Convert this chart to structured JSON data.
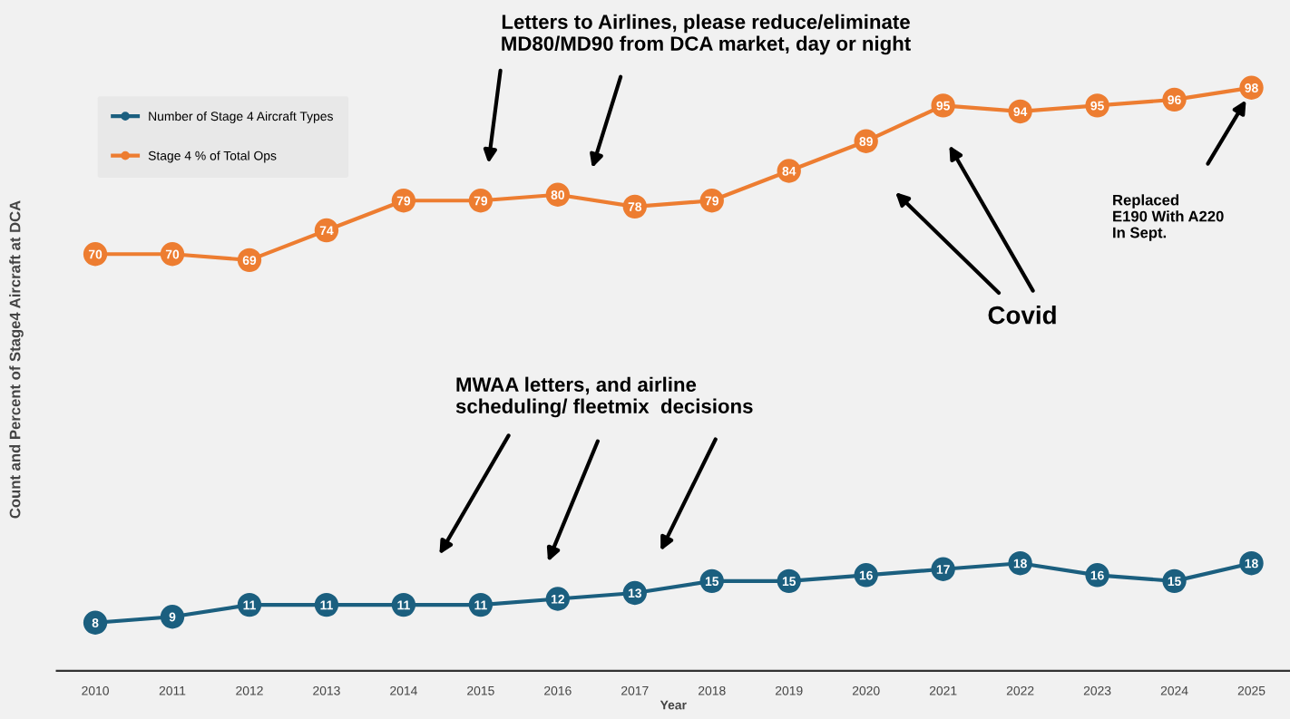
{
  "chart_data": {
    "type": "line",
    "xlabel": "Year",
    "ylabel": "Count and Percent of Stage4 Aircraft at DCA",
    "categories": [
      "2010",
      "2011",
      "2012",
      "2013",
      "2014",
      "2015",
      "2016",
      "2017",
      "2018",
      "2019",
      "2020",
      "2021",
      "2022",
      "2023",
      "2024",
      "2025"
    ],
    "series": [
      {
        "name": "Number of Stage 4 Aircraft Types",
        "color": "#1b5f7f",
        "values": [
          8,
          9,
          11,
          11,
          11,
          11,
          12,
          13,
          15,
          15,
          16,
          17,
          18,
          16,
          15,
          18
        ]
      },
      {
        "name": "Stage 4 % of Total Ops",
        "color": "#ed7d31",
        "values": [
          70,
          70,
          69,
          74,
          79,
          79,
          80,
          78,
          79,
          84,
          89,
          95,
          94,
          95,
          96,
          98
        ]
      }
    ],
    "tick_labels": "x",
    "grid": false,
    "legend": "top left",
    "marker": "circle",
    "line_style": "solid",
    "data_labels": true,
    "annotations": [
      "Letters to Airlines, please reduce/eliminate\nMD80/MD90 from DCA market, day or night",
      "MWAA letters, and airline\nscheduling/ fleetmix  decisions",
      "Covid",
      "Replaced\nE190 With A220\nIn Sept."
    ]
  }
}
